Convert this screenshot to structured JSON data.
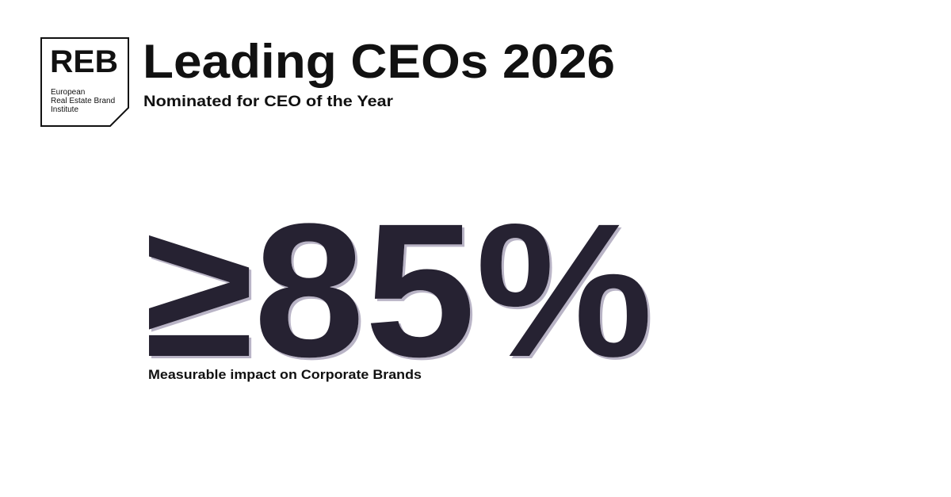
{
  "logo": {
    "abbreviation": "REB",
    "name_lines": [
      "European",
      "Real Estate Brand",
      "Institute"
    ]
  },
  "header": {
    "title": "Leading CEOs 2026",
    "subtitle": "Nominated for CEO of the Year"
  },
  "highlight": {
    "stat": "≥85%",
    "caption": "Measurable impact on Corporate Brands"
  }
}
